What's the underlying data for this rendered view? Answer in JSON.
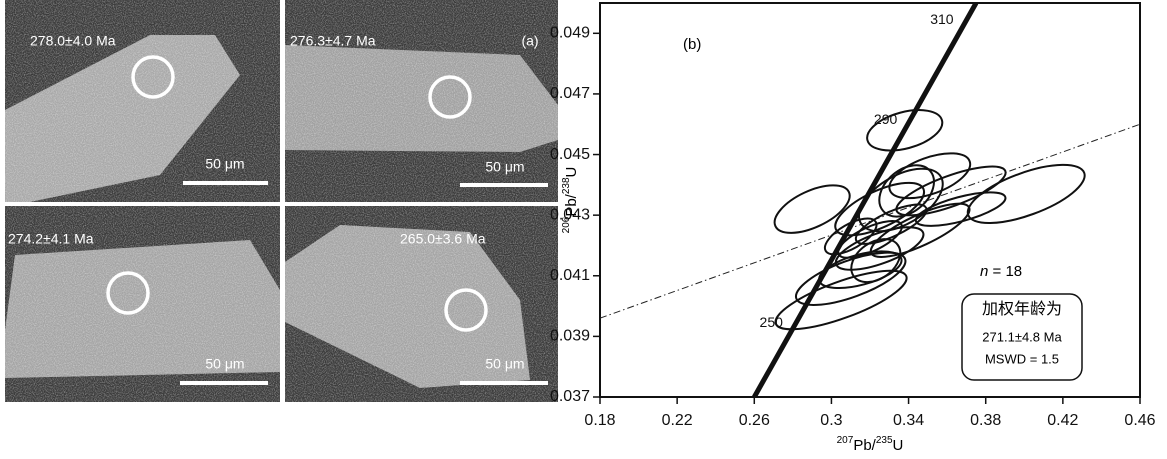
{
  "images": [
    {
      "age": "278.0±4.0 Ma",
      "scale": "50 μm"
    },
    {
      "age": "276.3±4.7 Ma",
      "scale": "50 μm"
    },
    {
      "age": "274.2±4.1 Ma",
      "scale": "50 μm"
    },
    {
      "age": "265.0±3.6 Ma",
      "scale": "50 μm"
    }
  ],
  "panel_a_label": "(a)",
  "chart_data": {
    "type": "concordia",
    "panel_label": "(b)",
    "xlabel": [
      {
        "sup": "207"
      },
      {
        "text": "Pb/"
      },
      {
        "sup": "235"
      },
      {
        "text": "U"
      }
    ],
    "ylabel": [
      {
        "sup": "206"
      },
      {
        "text": "Pb/"
      },
      {
        "sup": "238"
      },
      {
        "text": "U"
      }
    ],
    "xlim": [
      0.18,
      0.46
    ],
    "xticks": [
      0.18,
      0.22,
      0.26,
      0.3,
      0.34,
      0.38,
      0.42,
      0.46
    ],
    "ylim": [
      0.037,
      0.05
    ],
    "yticks": [
      0.037,
      0.039,
      0.041,
      0.043,
      0.045,
      0.047,
      0.049
    ],
    "concordia": {
      "x": [
        0.26,
        0.375
      ],
      "y": [
        0.037,
        0.05
      ]
    },
    "age_marks": [
      {
        "age": 250,
        "x": 0.2821,
        "y": 0.0395
      },
      {
        "age": 290,
        "x": 0.3414,
        "y": 0.0462
      },
      {
        "age": 310,
        "x": 0.3706,
        "y": 0.0495
      }
    ],
    "reference_line": {
      "x": [
        0.18,
        0.46
      ],
      "y": [
        0.0396,
        0.046
      ]
    },
    "ellipses": [
      {
        "x": 0.29,
        "y": 0.0432,
        "rx": 0.021,
        "ry": 0.0006,
        "angle": -25
      },
      {
        "x": 0.338,
        "y": 0.0458,
        "rx": 0.02,
        "ry": 0.0006,
        "angle": -15
      },
      {
        "x": 0.401,
        "y": 0.0437,
        "rx": 0.032,
        "ry": 0.0007,
        "angle": -20
      },
      {
        "x": 0.346,
        "y": 0.0425,
        "rx": 0.028,
        "ry": 0.0005,
        "angle": -25
      },
      {
        "x": 0.325,
        "y": 0.0432,
        "rx": 0.025,
        "ry": 0.0006,
        "angle": -25
      },
      {
        "x": 0.31,
        "y": 0.0409,
        "rx": 0.03,
        "ry": 0.0006,
        "angle": -20
      },
      {
        "x": 0.305,
        "y": 0.0402,
        "rx": 0.036,
        "ry": 0.0006,
        "angle": -20
      },
      {
        "x": 0.325,
        "y": 0.0419,
        "rx": 0.024,
        "ry": 0.0005,
        "angle": -20
      },
      {
        "x": 0.362,
        "y": 0.0438,
        "rx": 0.03,
        "ry": 0.0005,
        "angle": -20
      },
      {
        "x": 0.336,
        "y": 0.0435,
        "rx": 0.024,
        "ry": 0.0008,
        "angle": -30
      },
      {
        "x": 0.32,
        "y": 0.0422,
        "rx": 0.018,
        "ry": 0.0004,
        "angle": -25
      },
      {
        "x": 0.351,
        "y": 0.0443,
        "rx": 0.022,
        "ry": 0.0006,
        "angle": -20
      },
      {
        "x": 0.315,
        "y": 0.0412,
        "rx": 0.022,
        "ry": 0.0005,
        "angle": -15
      },
      {
        "x": 0.331,
        "y": 0.0427,
        "rx": 0.02,
        "ry": 0.0004,
        "angle": -25
      },
      {
        "x": 0.367,
        "y": 0.0432,
        "rx": 0.024,
        "ry": 0.0004,
        "angle": -15
      },
      {
        "x": 0.31,
        "y": 0.0423,
        "rx": 0.015,
        "ry": 0.0004,
        "angle": -30
      },
      {
        "x": 0.339,
        "y": 0.0438,
        "rx": 0.016,
        "ry": 0.0007,
        "angle": -40
      },
      {
        "x": 0.323,
        "y": 0.0415,
        "rx": 0.014,
        "ry": 0.0006,
        "angle": -35
      }
    ],
    "sample_count": {
      "symbol": "n",
      "text": "= 18"
    },
    "result_box": [
      "加权年龄为",
      "271.1±4.8 Ma",
      "MSWD = 1.5"
    ]
  }
}
